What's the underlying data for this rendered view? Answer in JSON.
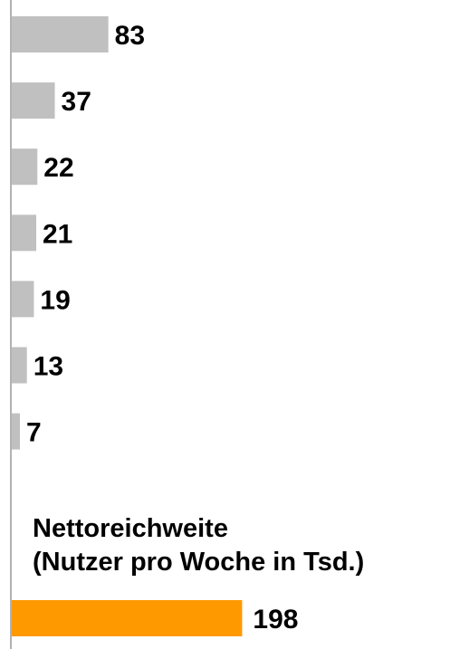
{
  "chart_data": {
    "type": "bar",
    "orientation": "horizontal",
    "series": [
      {
        "values": [
          83,
          37,
          22,
          21,
          19,
          13,
          7
        ],
        "color": "#c0c0c0"
      }
    ],
    "total": {
      "heading_line1": "Nettoreichweite",
      "heading_line2": "(Nutzer pro Woche in Tsd.)",
      "value": 198,
      "color": "#ff9900"
    },
    "axis_color": "#999999",
    "grid": false,
    "legend": "none"
  }
}
